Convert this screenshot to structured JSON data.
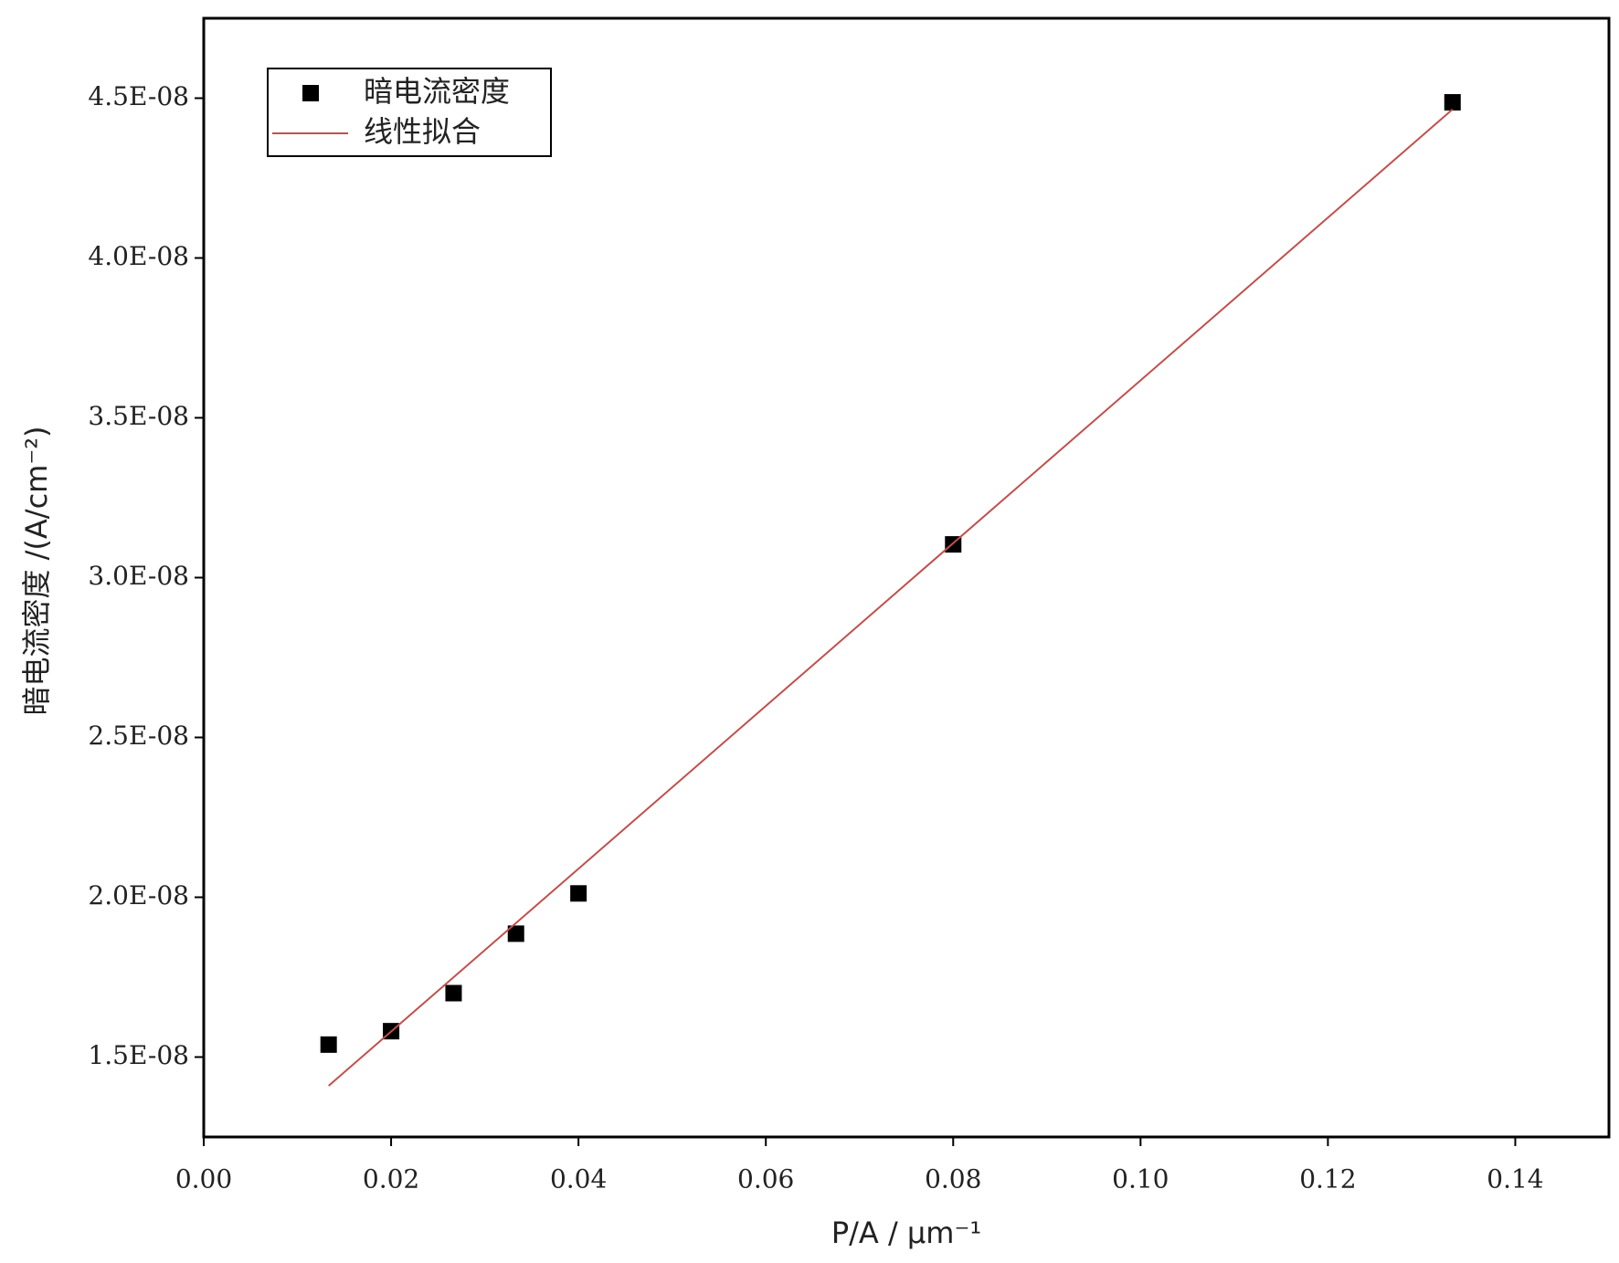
{
  "chart_data": {
    "type": "scatter",
    "xlabel": "P/A / μm⁻¹",
    "ylabel": "暗电流密度 /(A/cm⁻²)",
    "xlim": [
      0,
      0.15
    ],
    "ylim": [
      1.25e-08,
      4.75e-08
    ],
    "xticks": [
      {
        "value": 0,
        "label": "0.00"
      },
      {
        "value": 0.02,
        "label": "0.02"
      },
      {
        "value": 0.04,
        "label": "0.04"
      },
      {
        "value": 0.06,
        "label": "0.06"
      },
      {
        "value": 0.08,
        "label": "0.08"
      },
      {
        "value": 0.1,
        "label": "0.10"
      },
      {
        "value": 0.12,
        "label": "0.12"
      },
      {
        "value": 0.14,
        "label": "0.14"
      }
    ],
    "yticks": [
      {
        "value": 1.5e-08,
        "label": "1.5E-08"
      },
      {
        "value": 2e-08,
        "label": "2.0E-08"
      },
      {
        "value": 2.5e-08,
        "label": "2.5E-08"
      },
      {
        "value": 3e-08,
        "label": "3.0E-08"
      },
      {
        "value": 3.5e-08,
        "label": "3.5E-08"
      },
      {
        "value": 4e-08,
        "label": "4.0E-08"
      },
      {
        "value": 4.5e-08,
        "label": "4.5E-08"
      }
    ],
    "legend": "upper left",
    "series": [
      {
        "name": "暗电流密度",
        "type": "scatter",
        "color": "#000000",
        "x": [
          0.01333,
          0.02,
          0.02667,
          0.03333,
          0.04,
          0.08,
          0.1333
        ],
        "values": [
          1.539e-08,
          1.581e-08,
          1.7e-08,
          1.886e-08,
          2.012e-08,
          3.104e-08,
          4.487e-08
        ]
      },
      {
        "name": "线性拟合",
        "type": "line",
        "color": "#c0504d",
        "x": [
          0.01333,
          0.1333
        ],
        "values": [
          1.41e-08,
          4.465e-08
        ]
      }
    ]
  }
}
